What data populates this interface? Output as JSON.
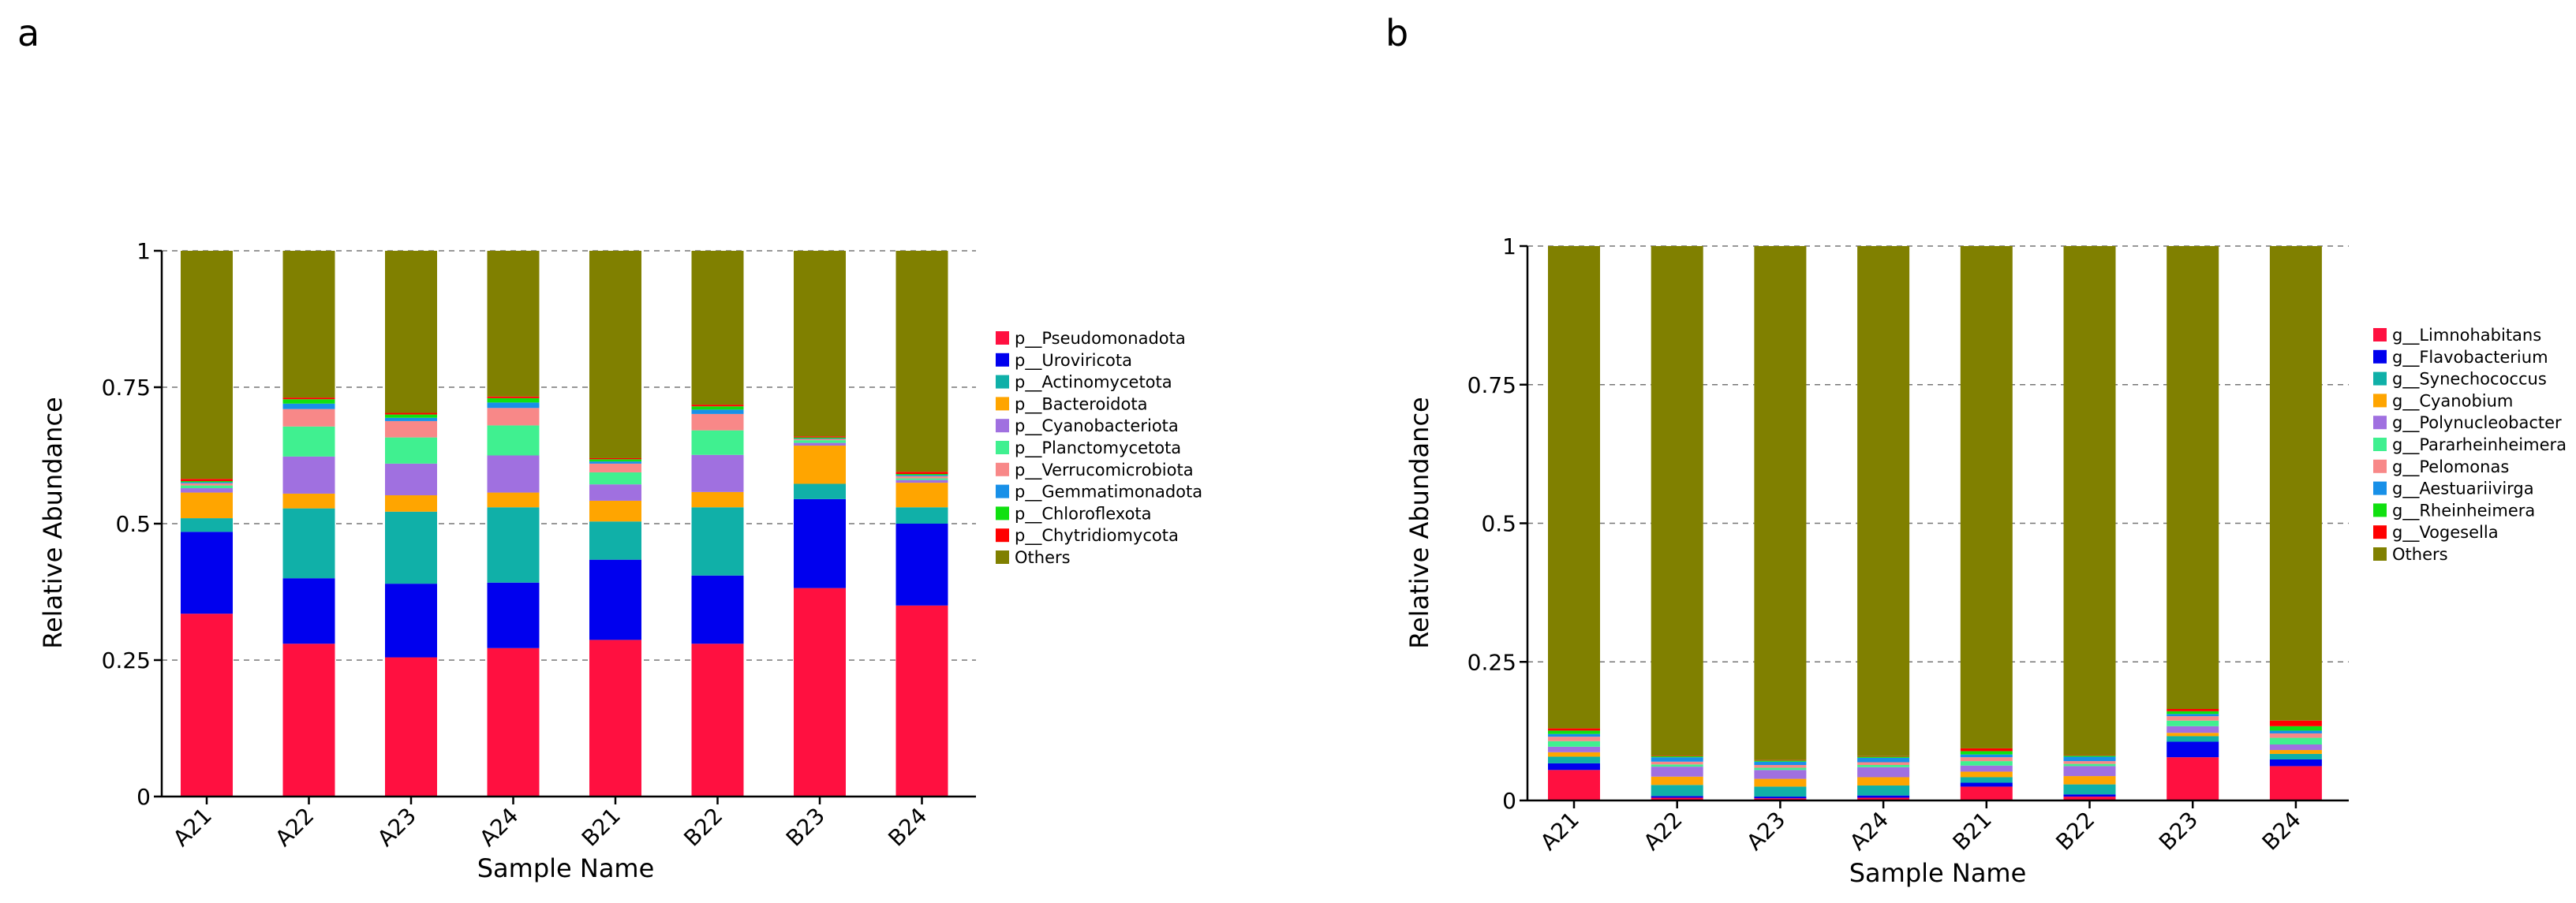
{
  "colors": {
    "legend": [
      "#ff1040",
      "#0000ee",
      "#10b0a8",
      "#ffa500",
      "#a070e0",
      "#40f090",
      "#f88888",
      "#1890e8",
      "#10e010",
      "#ff0000",
      "#808000"
    ]
  },
  "chart_data": [
    {
      "panel": "a",
      "type": "bar",
      "stacked": true,
      "xlabel": "Sample Name",
      "ylabel": "Relative Abundance",
      "ylim": [
        0,
        1
      ],
      "yticks": [
        "0",
        "0.25",
        "0.5",
        "0.75",
        "1"
      ],
      "grid": "dashed horizontal",
      "legend_position": "right",
      "categories": [
        "A21",
        "A22",
        "A23",
        "A24",
        "B21",
        "B22",
        "B23",
        "B24"
      ],
      "series": [
        {
          "name": "p__Pseudomonadota",
          "values": [
            0.335,
            0.28,
            0.255,
            0.272,
            0.287,
            0.28,
            0.382,
            0.35
          ]
        },
        {
          "name": "p__Uroviricota",
          "values": [
            0.15,
            0.12,
            0.135,
            0.12,
            0.147,
            0.125,
            0.163,
            0.15
          ]
        },
        {
          "name": "p__Actinomycetota",
          "values": [
            0.025,
            0.128,
            0.132,
            0.138,
            0.07,
            0.125,
            0.028,
            0.03
          ]
        },
        {
          "name": "p__Bacteroidota",
          "values": [
            0.047,
            0.027,
            0.03,
            0.027,
            0.038,
            0.028,
            0.07,
            0.045
          ]
        },
        {
          "name": "p__Cyanobacteriota",
          "values": [
            0.008,
            0.068,
            0.058,
            0.068,
            0.03,
            0.068,
            0.005,
            0.005
          ]
        },
        {
          "name": "p__Planctomycetota",
          "values": [
            0.005,
            0.055,
            0.048,
            0.055,
            0.022,
            0.045,
            0.005,
            0.003
          ]
        },
        {
          "name": "p__Verrucomicrobiota",
          "values": [
            0.004,
            0.032,
            0.03,
            0.032,
            0.016,
            0.03,
            0.002,
            0.004
          ]
        },
        {
          "name": "p__Gemmatimonadota",
          "values": [
            0.002,
            0.01,
            0.006,
            0.01,
            0.004,
            0.008,
            0.001,
            0.002
          ]
        },
        {
          "name": "p__Chloroflexota",
          "values": [
            0.002,
            0.008,
            0.006,
            0.008,
            0.004,
            0.006,
            0.002,
            0.002
          ]
        },
        {
          "name": "p__Chytridiomycota",
          "values": [
            0.004,
            0.003,
            0.003,
            0.003,
            0.002,
            0.003,
            0.002,
            0.004
          ]
        },
        {
          "name": "Others",
          "values": [
            0.418,
            0.269,
            0.297,
            0.267,
            0.38,
            0.282,
            0.34,
            0.405
          ]
        }
      ]
    },
    {
      "panel": "b",
      "type": "bar",
      "stacked": true,
      "xlabel": "Sample Name",
      "ylabel": "Relative Abundance",
      "ylim": [
        0,
        1
      ],
      "yticks": [
        "0",
        "0.25",
        "0.5",
        "0.75",
        "1"
      ],
      "grid": "dashed horizontal",
      "legend_position": "right",
      "categories": [
        "A21",
        "A22",
        "A23",
        "A24",
        "B21",
        "B22",
        "B23",
        "B24"
      ],
      "series": [
        {
          "name": "g__Limnohabitans",
          "values": [
            0.055,
            0.005,
            0.004,
            0.005,
            0.025,
            0.007,
            0.078,
            0.062
          ]
        },
        {
          "name": "g__Flavobacterium",
          "values": [
            0.012,
            0.003,
            0.003,
            0.004,
            0.007,
            0.004,
            0.028,
            0.012
          ]
        },
        {
          "name": "g__Synechococcus",
          "values": [
            0.012,
            0.02,
            0.018,
            0.018,
            0.01,
            0.018,
            0.01,
            0.01
          ]
        },
        {
          "name": "g__Cyanobium",
          "values": [
            0.008,
            0.015,
            0.014,
            0.015,
            0.01,
            0.015,
            0.006,
            0.007
          ]
        },
        {
          "name": "g__Polynucleobacter",
          "values": [
            0.01,
            0.018,
            0.016,
            0.018,
            0.011,
            0.018,
            0.012,
            0.01
          ]
        },
        {
          "name": "g__Pararheinheimera",
          "values": [
            0.01,
            0.004,
            0.004,
            0.004,
            0.008,
            0.004,
            0.01,
            0.012
          ]
        },
        {
          "name": "g__Pelomonas",
          "values": [
            0.008,
            0.005,
            0.005,
            0.005,
            0.007,
            0.005,
            0.008,
            0.008
          ]
        },
        {
          "name": "g__Aestuariivirga",
          "values": [
            0.005,
            0.008,
            0.006,
            0.008,
            0.005,
            0.008,
            0.004,
            0.005
          ]
        },
        {
          "name": "g__Rheinheimera",
          "values": [
            0.006,
            0.002,
            0.002,
            0.002,
            0.006,
            0.002,
            0.005,
            0.008
          ]
        },
        {
          "name": "g__Vogesella",
          "values": [
            0.004,
            0.001,
            0.001,
            0.001,
            0.005,
            0.001,
            0.004,
            0.01
          ]
        },
        {
          "name": "Others",
          "values": [
            0.87,
            0.919,
            0.927,
            0.92,
            0.906,
            0.918,
            0.835,
            0.856
          ]
        }
      ]
    }
  ]
}
